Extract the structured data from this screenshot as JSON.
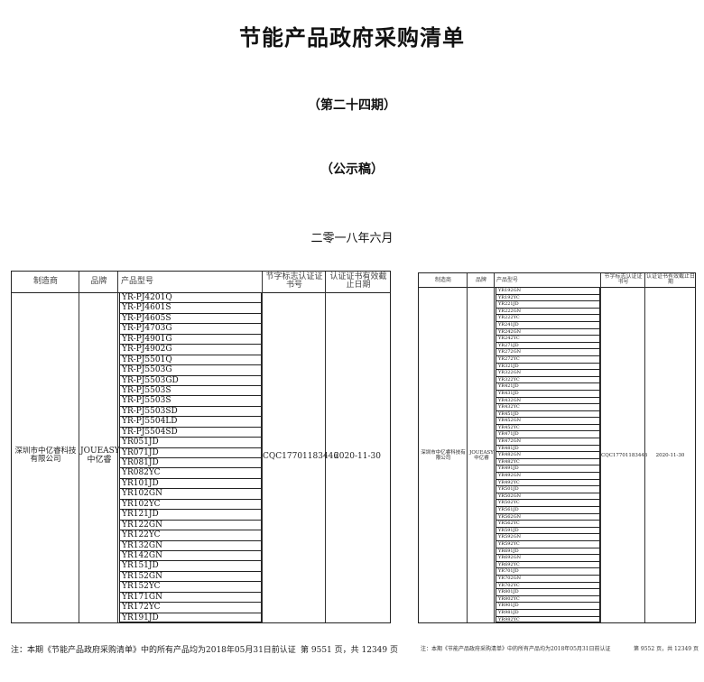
{
  "document": {
    "title": "节能产品政府采购清单",
    "issue": "（第二十四期）",
    "status": "（公示稿）",
    "date": "二零一八年六月"
  },
  "table_headers": {
    "manufacturer": "制造商",
    "brand": "品牌",
    "model": "产品型号",
    "cert_no": "节字标志认证证书号",
    "expiry": "认证证书有效截止日期"
  },
  "left_page": {
    "manufacturer": "深圳市中亿睿科技有限公司",
    "brand_en": "JOUEASY",
    "brand_cn": "中亿睿",
    "cert_no": "CQC17701183446",
    "expiry": "2020-11-30",
    "models": [
      "YR-PJ4201Q",
      "YR-PJ4601S",
      "YR-PJ4605S",
      "YR-PJ4703G",
      "YR-PJ4901G",
      "YR-PJ4902G",
      "YR-PJ5501Q",
      "YR-PJ5503G",
      "YR-PJ5503GD",
      "YR-PJ5503S",
      "YR-PJ5503S",
      "YR-PJ5503SD",
      "YR-PJ5504LD",
      "YR-PJ5504SD",
      "YR051JD",
      "YR071JD",
      "YR081JD",
      "YR082YC",
      "YR101JD",
      "YR102GN",
      "YR102YC",
      "YR121JD",
      "YR122GN",
      "YR122YC",
      "YR132GN",
      "YR142GN",
      "YR151JD",
      "YR152GN",
      "YR152YC",
      "YR171GN",
      "YR172YC",
      "YR191JD"
    ],
    "footer_note": "注：本期《节能产品政府采购清单》中的所有产品均为2018年05月31日前认证",
    "page_info": "第 9551 页，共 12349 页"
  },
  "right_page": {
    "manufacturer": "深圳市中亿睿科技有限公司",
    "brand_en": "JOUEASY",
    "brand_cn": "中亿睿",
    "cert_no": "CQC17701183446",
    "expiry": "2020-11-30",
    "models": [
      "YR192GN",
      "YR192YC",
      "YR221JD",
      "YR222GN",
      "YR222YC",
      "YR241JD",
      "YR242GN",
      "YR242YC",
      "YR271JD",
      "YR272GN",
      "YR272YC",
      "YR321JD",
      "YR322GN",
      "YR322YC",
      "YR421JD",
      "YR431JD",
      "YR432GN",
      "YR432YC",
      "YR451JD",
      "YR452GN",
      "YR452YC",
      "YR471JD",
      "YR472GN",
      "YR481JD",
      "YR482GN",
      "YR482YC",
      "YR491JD",
      "YR492GN",
      "YR492YC",
      "YR501JD",
      "YR502GN",
      "YR502YC",
      "YR561JD",
      "YR562GN",
      "YR562YC",
      "YR591JD",
      "YR592GN",
      "YR592YC",
      "YR691JD",
      "YR692GN",
      "YR692YC",
      "YR701JD",
      "YR702GN",
      "YR702YC",
      "YR801JD",
      "YR802YC",
      "YR901JD",
      "YR981JD",
      "YR982YC"
    ],
    "footer_note": "注：本期《节能产品政府采购清单》中的所有产品均为2018年05月31日前认证",
    "page_info": "第 9552 页，共 12349 页"
  }
}
